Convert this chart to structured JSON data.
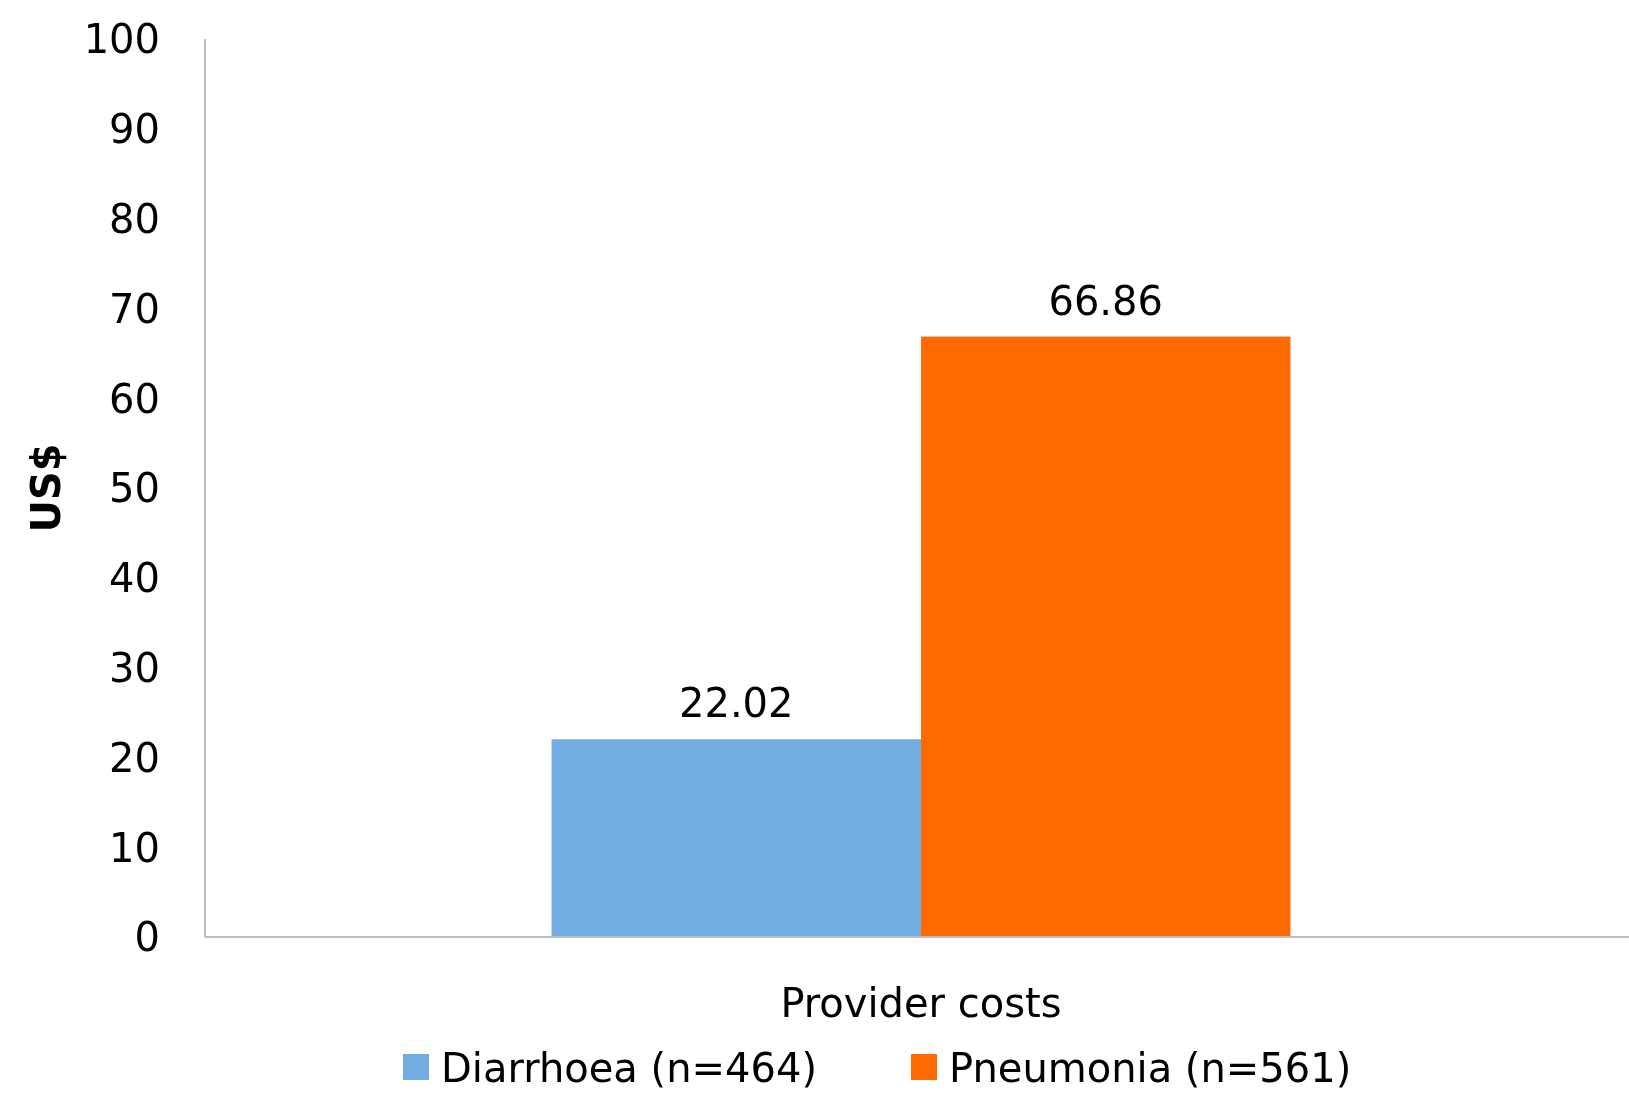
{
  "chart_data": {
    "type": "bar",
    "ylabel": "US$",
    "categories": [
      "Provider costs"
    ],
    "series": [
      {
        "name": "Diarrhoea (n=464)",
        "color": "#71ace3",
        "values": [
          22.02
        ]
      },
      {
        "name": "Pneumonia (n=561)",
        "color": "#ff6a00",
        "values": [
          66.86
        ]
      }
    ],
    "ylim": [
      0,
      100
    ],
    "yticks": [
      0,
      10,
      20,
      30,
      40,
      50,
      60,
      70,
      80,
      90,
      100
    ],
    "grid": false,
    "legend": "bottom",
    "data_labels": true
  }
}
